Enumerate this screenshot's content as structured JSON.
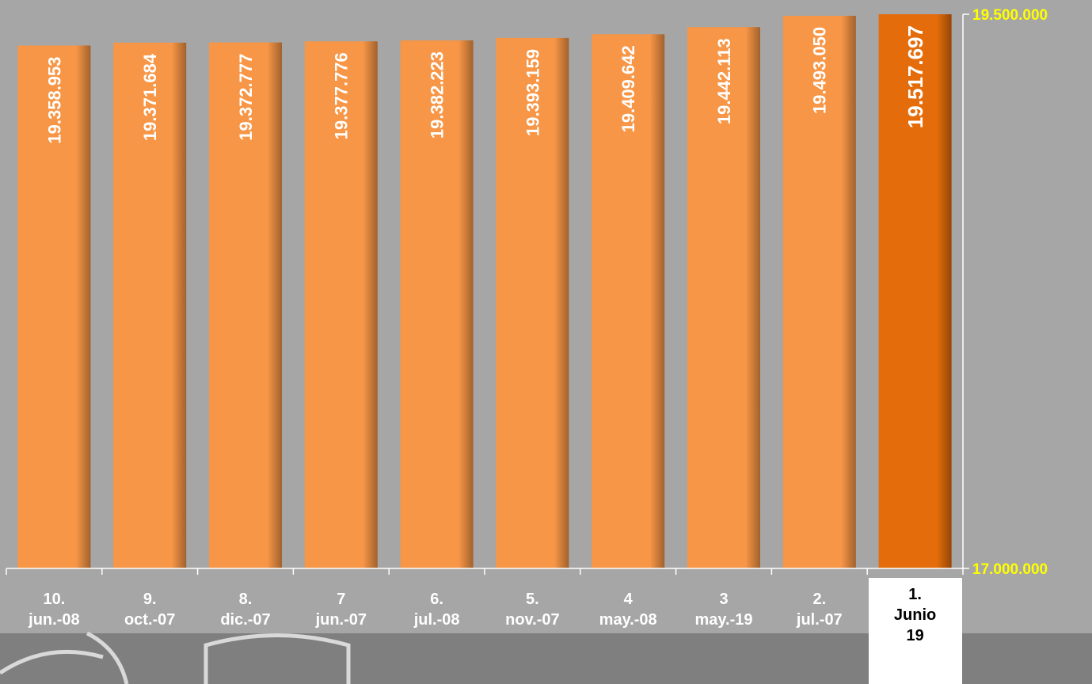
{
  "chart_data": {
    "type": "bar",
    "categories": [
      "10.\njun.-08",
      "9.\noct.-07",
      "8.\ndic.-07",
      "7\njun.-07",
      "6.\njul.-08",
      "5.\nnov.-07",
      "4\nmay.-08",
      "3\nmay.-19",
      "2.\njul.-07",
      "1.\nJunio\n19"
    ],
    "values": [
      19358953,
      19371684,
      19372777,
      19377776,
      19382223,
      19393159,
      19409642,
      19442113,
      19493050,
      19517697
    ],
    "value_labels": [
      "19.358.953",
      "19.371.684",
      "19.372.777",
      "19.377.776",
      "19.382.223",
      "19.393.159",
      "19.409.642",
      "19.442.113",
      "19.493.050",
      "19.517.697"
    ],
    "colors": [
      "#f79646",
      "#f79646",
      "#f79646",
      "#f79646",
      "#f79646",
      "#f79646",
      "#f79646",
      "#f79646",
      "#f79646",
      "#e46c0a"
    ],
    "ylim": [
      17000000,
      19500000
    ],
    "yticks": [
      {
        "value": 17000000,
        "label": "17.000.000"
      },
      {
        "value": 19500000,
        "label": "19.500.000"
      }
    ],
    "y_axis_side": "right",
    "grid": false
  }
}
